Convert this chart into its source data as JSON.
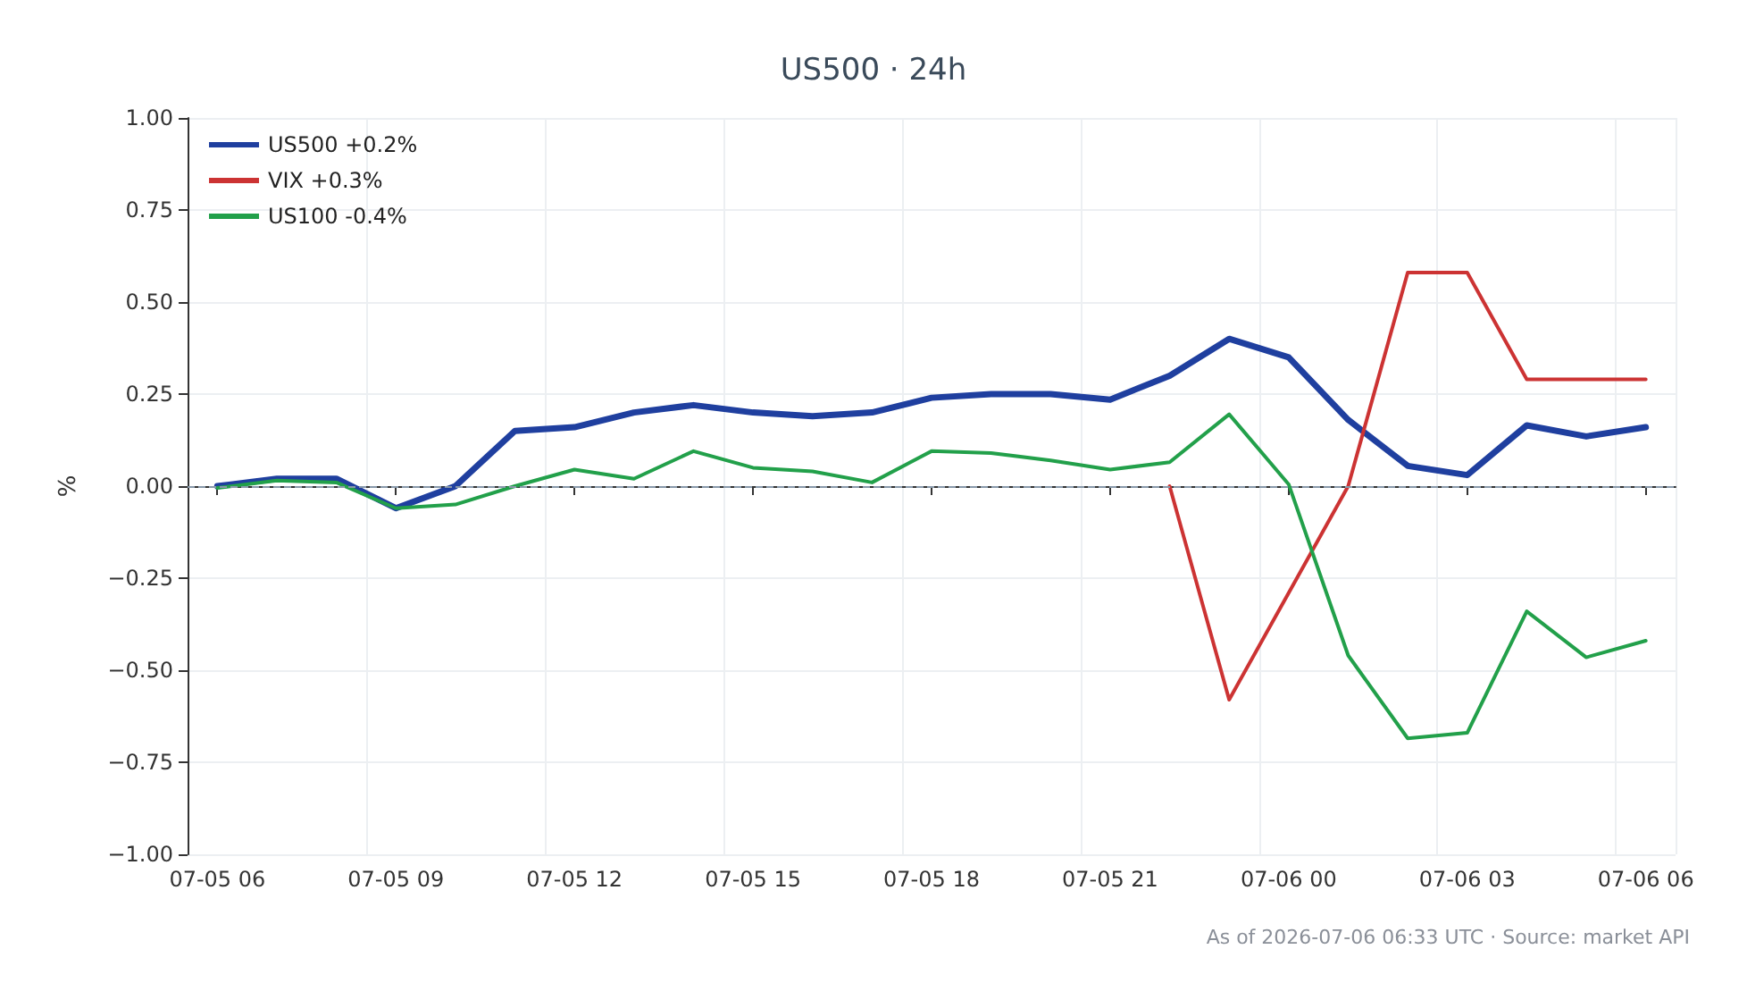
{
  "chart_data": {
    "type": "line",
    "title": "US500 · 24h",
    "ylabel": "%",
    "categories": [
      "07-05 06",
      null,
      null,
      "07-05 09",
      null,
      null,
      "07-05 12",
      null,
      null,
      "07-05 15",
      null,
      null,
      "07-05 18",
      null,
      null,
      "07-05 21",
      null,
      null,
      "07-06 00",
      null,
      null,
      "07-06 03",
      null,
      null,
      "07-06 06"
    ],
    "series": [
      {
        "name": "US500 +0.2%",
        "color": "#1f3f9f",
        "values": [
          0.0,
          0.02,
          0.02,
          -0.06,
          0.0,
          0.15,
          0.16,
          0.2,
          0.22,
          0.2,
          0.19,
          0.2,
          0.24,
          0.25,
          0.25,
          0.235,
          0.3,
          0.4,
          0.35,
          0.18,
          0.055,
          0.03,
          0.165,
          0.135,
          0.16
        ]
      },
      {
        "name": "VIX +0.3%",
        "color": "#cc3333",
        "values": [
          null,
          null,
          null,
          null,
          null,
          null,
          null,
          null,
          null,
          null,
          null,
          null,
          null,
          null,
          null,
          null,
          0.0,
          -0.58,
          -0.29,
          0.0,
          0.58,
          0.58,
          0.29,
          0.29,
          0.29
        ]
      },
      {
        "name": "US100 -0.4%",
        "color": "#22a04a",
        "values": [
          -0.005,
          0.015,
          0.01,
          -0.06,
          -0.05,
          0.0,
          0.045,
          0.02,
          0.095,
          0.05,
          0.04,
          0.01,
          0.095,
          0.09,
          0.07,
          0.045,
          0.065,
          0.195,
          0.005,
          -0.46,
          -0.685,
          -0.67,
          -0.34,
          -0.465,
          -0.42
        ]
      }
    ],
    "ylim": [
      -1,
      1
    ],
    "yticks": [
      {
        "value": -1,
        "label": "−1.00"
      },
      {
        "value": -0.75,
        "label": "−0.75"
      },
      {
        "value": -0.5,
        "label": "−0.50"
      },
      {
        "value": -0.25,
        "label": "−0.25"
      },
      {
        "value": 0,
        "label": "0.00"
      },
      {
        "value": 0.25,
        "label": "0.25"
      },
      {
        "value": 0.5,
        "label": "0.50"
      },
      {
        "value": 0.75,
        "label": "0.75"
      },
      {
        "value": 1,
        "label": "1.00"
      }
    ],
    "ref_lines": [
      {
        "axis": "y",
        "value": 0,
        "color": "#8899aa",
        "line_style": "dashed"
      }
    ],
    "grid": true,
    "legend": "top left",
    "marker": "none",
    "line_style": "solid",
    "annotations": [
      "As of 2026-07-06 06:33 UTC · Source: market API"
    ]
  }
}
